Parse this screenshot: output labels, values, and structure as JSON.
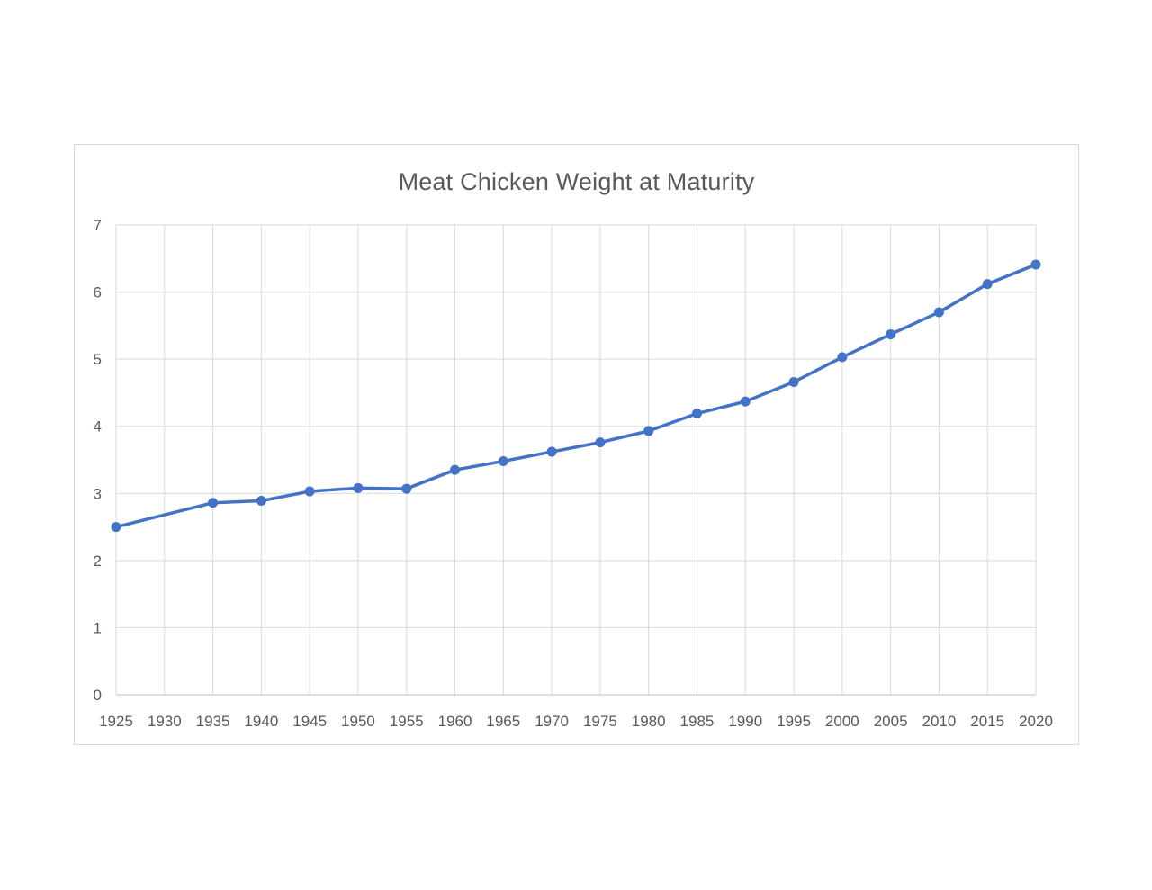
{
  "chart_data": {
    "type": "line",
    "title": "Meat Chicken Weight at Maturity",
    "xlabel": "",
    "ylabel": "",
    "xlim": [
      1925,
      2020
    ],
    "ylim": [
      0,
      7
    ],
    "grid": true,
    "legend": "none",
    "x_tick_labels": [
      "1925",
      "1930",
      "1935",
      "1940",
      "1945",
      "1950",
      "1955",
      "1960",
      "1965",
      "1970",
      "1975",
      "1980",
      "1985",
      "1990",
      "1995",
      "2000",
      "2005",
      "2010",
      "2015",
      "2020"
    ],
    "y_tick_labels": [
      "0",
      "1",
      "2",
      "3",
      "4",
      "5",
      "6",
      "7"
    ],
    "series": [
      {
        "x": [
          1925,
          1935,
          1940,
          1945,
          1950,
          1955,
          1960,
          1965,
          1970,
          1975,
          1980,
          1985,
          1990,
          1995,
          2000,
          2005,
          2010,
          2015,
          2020
        ],
        "values": [
          2.5,
          2.86,
          2.89,
          3.03,
          3.08,
          3.07,
          3.35,
          3.48,
          3.62,
          3.76,
          3.93,
          4.19,
          4.37,
          4.66,
          5.03,
          5.37,
          5.7,
          6.12,
          6.41
        ],
        "note": "no data point at 1930; line connects 1925 directly to 1935"
      }
    ],
    "colors": {
      "series_line": "#4472C4",
      "marker_fill": "#4472C4",
      "gridline": "#d9d9d9",
      "axis_line": "#bfbfbf",
      "tick_text": "#595959",
      "title_text": "#595959",
      "frame_border": "#d9d9d9",
      "background": "#ffffff"
    }
  }
}
